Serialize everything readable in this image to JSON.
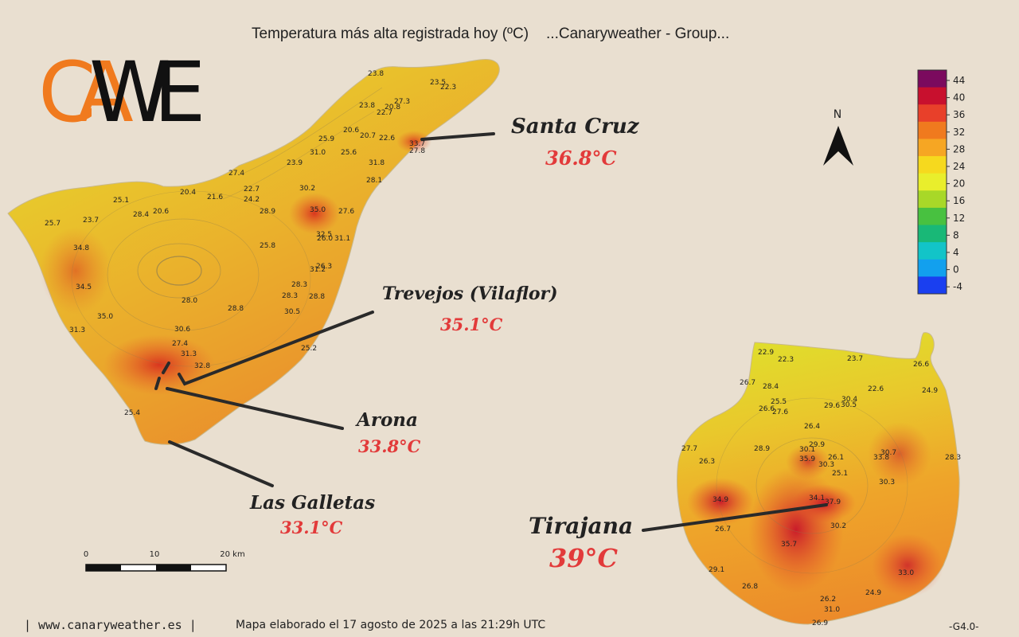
{
  "header": {
    "title": "Temperatura más alta registrada hoy (ºC)",
    "source": "...Canaryweather - Group..."
  },
  "logo": {
    "line1": "CA",
    "line2": "WE"
  },
  "compass": {
    "label": "N"
  },
  "legend": {
    "ticks": [
      "44",
      "40",
      "36",
      "32",
      "28",
      "24",
      "20",
      "16",
      "12",
      "8",
      "4",
      "0",
      "-4"
    ],
    "colors": [
      "#7b0a5e",
      "#c8102e",
      "#e8402a",
      "#f07a1e",
      "#f6a623",
      "#f6d91e",
      "#e9ee2c",
      "#a8d828",
      "#48c140",
      "#19b877",
      "#12c4c8",
      "#12a0ee",
      "#1a3ff0"
    ]
  },
  "scale": {
    "ticks": [
      "0",
      "10",
      "20 km"
    ]
  },
  "callouts": [
    {
      "id": "santa-cruz",
      "name": "Santa Cruz",
      "value": "36.8°C"
    },
    {
      "id": "trevejos",
      "name": "Trevejos (Vilaflor)",
      "value": "35.1°C"
    },
    {
      "id": "arona",
      "name": "Arona",
      "value": "33.8°C"
    },
    {
      "id": "las-galletas",
      "name": "Las Galletas",
      "value": "33.1°C"
    },
    {
      "id": "tirajana",
      "name": "Tirajana",
      "value": "39°C"
    }
  ],
  "stations_tenerife": [
    "23.8",
    "23.5",
    "22.3",
    "27.3",
    "23.8",
    "20.8",
    "22.7",
    "20.6",
    "20.7",
    "22.6",
    "33.7",
    "27.8",
    "25.9",
    "25.6",
    "31.0",
    "31.8",
    "23.9",
    "27.4",
    "28.1",
    "20.4",
    "21.6",
    "22.7",
    "24.2",
    "30.2",
    "25.1",
    "28.4",
    "20.6",
    "28.9",
    "35.0",
    "27.6",
    "23.7",
    "25.7",
    "32.5",
    "26.0",
    "31.1",
    "25.8",
    "34.8",
    "26.3",
    "31.2",
    "34.5",
    "28.3",
    "28.3",
    "28.8",
    "28.0",
    "30.5",
    "28.8",
    "35.0",
    "31.3",
    "30.6",
    "27.4",
    "25.2",
    "31.3",
    "32.8",
    "25.4"
  ],
  "stations_grancanaria": [
    "22.9",
    "22.3",
    "23.7",
    "26.6",
    "26.7",
    "28.4",
    "24.9",
    "22.6",
    "25.5",
    "26.6",
    "27.6",
    "30.4",
    "29.6",
    "30.5",
    "26.4",
    "29.9",
    "30.1",
    "27.7",
    "28.9",
    "35.9",
    "26.1",
    "30.7",
    "33.8",
    "28.3",
    "26.3",
    "30.3",
    "25.1",
    "30.3",
    "34.1",
    "34.9",
    "37.9",
    "26.7",
    "30.2",
    "35.7",
    "29.1",
    "33.0",
    "26.8",
    "24.9",
    "26.2",
    "31.0",
    "26.9"
  ],
  "footer": {
    "site": "| www.canaryweather.es |",
    "made": "Mapa elaborado el 17 agosto de 2025 a las 21:29h UTC",
    "code": "-G4.0-"
  }
}
